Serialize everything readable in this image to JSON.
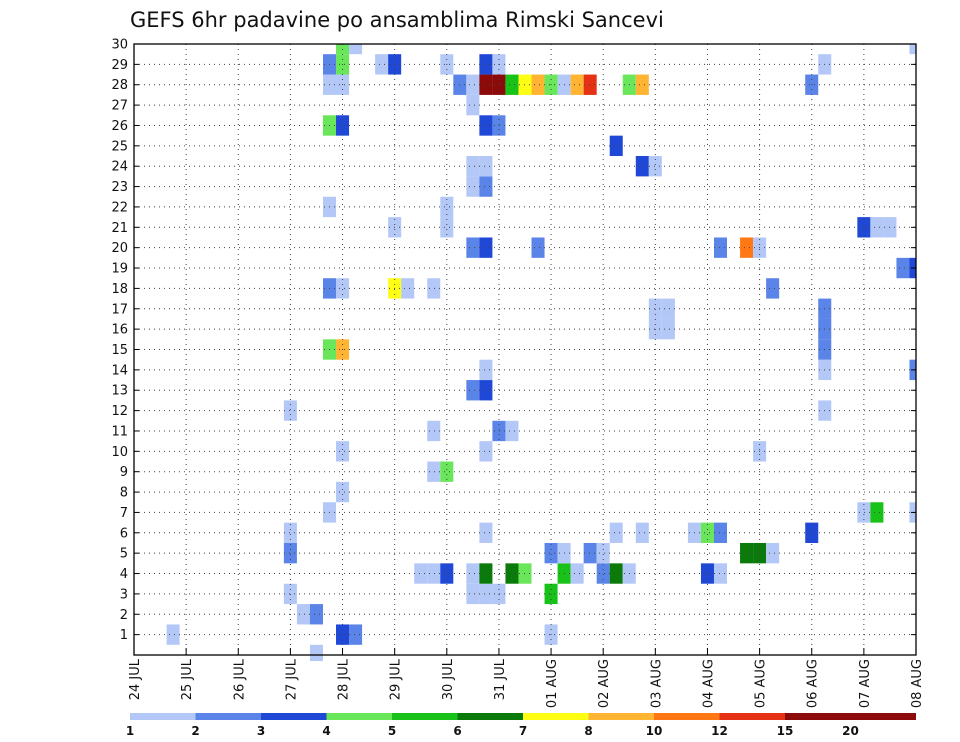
{
  "chart_data": {
    "type": "heatmap",
    "title": "GEFS 6hr padavine po ansamblima Rimski Sancevi",
    "xlabel": "",
    "ylabel": "",
    "x_tick_labels": [
      "24 JUL",
      "25 JUL",
      "26 JUL",
      "27 JUL",
      "28 JUL",
      "29 JUL",
      "30 JUL",
      "31 JUL",
      "01 AUG",
      "02 AUG",
      "03 AUG",
      "04 AUG",
      "05 AUG",
      "06 AUG",
      "07 AUG",
      "08 AUG"
    ],
    "y_tick_labels": [
      "1",
      "2",
      "3",
      "4",
      "5",
      "6",
      "7",
      "8",
      "9",
      "10",
      "11",
      "12",
      "13",
      "14",
      "15",
      "16",
      "17",
      "18",
      "19",
      "20",
      "21",
      "22",
      "23",
      "24",
      "25",
      "26",
      "27",
      "28",
      "29",
      "30"
    ],
    "x_unit": "6-hour step from 24 JUL 00",
    "xlim": [
      0,
      60
    ],
    "ylim": [
      0,
      30
    ],
    "grid": true,
    "colorbar": {
      "labels": [
        "1",
        "2",
        "3",
        "4",
        "5",
        "6",
        "7",
        "8",
        "10",
        "12",
        "15",
        "20"
      ],
      "colors": [
        "#b4c8f8",
        "#5a84e8",
        "#1f48d6",
        "#6ae65a",
        "#19c219",
        "#0a7a0a",
        "#ffff14",
        "#ffb432",
        "#ff7814",
        "#e63214",
        "#8c0a0a"
      ]
    },
    "cells": [
      [
        3,
        1,
        0
      ],
      [
        16,
        1,
        2
      ],
      [
        17,
        1,
        1
      ],
      [
        32,
        1,
        0
      ],
      [
        13,
        2,
        0
      ],
      [
        14,
        2,
        1
      ],
      [
        12,
        3,
        0
      ],
      [
        26,
        3,
        0
      ],
      [
        27,
        3,
        0
      ],
      [
        28,
        3,
        0
      ],
      [
        32,
        3,
        4
      ],
      [
        22,
        4,
        0
      ],
      [
        23,
        4,
        0
      ],
      [
        24,
        4,
        2
      ],
      [
        26,
        4,
        0
      ],
      [
        27,
        4,
        5
      ],
      [
        29,
        4,
        5
      ],
      [
        30,
        4,
        3
      ],
      [
        33,
        4,
        4
      ],
      [
        34,
        4,
        0
      ],
      [
        36,
        4,
        1
      ],
      [
        37,
        4,
        5
      ],
      [
        38,
        4,
        0
      ],
      [
        44,
        4,
        2
      ],
      [
        45,
        4,
        0
      ],
      [
        12,
        5,
        1
      ],
      [
        32,
        5,
        1
      ],
      [
        33,
        5,
        0
      ],
      [
        35,
        5,
        1
      ],
      [
        36,
        5,
        0
      ],
      [
        47,
        5,
        5
      ],
      [
        48,
        5,
        5
      ],
      [
        49,
        5,
        0
      ],
      [
        12,
        6,
        0
      ],
      [
        27,
        6,
        0
      ],
      [
        37,
        6,
        0
      ],
      [
        39,
        6,
        0
      ],
      [
        43,
        6,
        0
      ],
      [
        44,
        6,
        3
      ],
      [
        45,
        6,
        1
      ],
      [
        52,
        6,
        2
      ],
      [
        15,
        7,
        0
      ],
      [
        56,
        7,
        0
      ],
      [
        57,
        7,
        4
      ],
      [
        60,
        7,
        0
      ],
      [
        16,
        8,
        0
      ],
      [
        23,
        9,
        0
      ],
      [
        24,
        9,
        3
      ],
      [
        16,
        10,
        0
      ],
      [
        27,
        10,
        0
      ],
      [
        48,
        10,
        0
      ],
      [
        23,
        11,
        0
      ],
      [
        28,
        11,
        1
      ],
      [
        29,
        11,
        0
      ],
      [
        12,
        12,
        0
      ],
      [
        53,
        12,
        0
      ],
      [
        26,
        13,
        1
      ],
      [
        27,
        13,
        2
      ],
      [
        27,
        14,
        0
      ],
      [
        53,
        14,
        0
      ],
      [
        60,
        14,
        1
      ],
      [
        15,
        15,
        3
      ],
      [
        16,
        15,
        7
      ],
      [
        53,
        15,
        1
      ],
      [
        40,
        16,
        0
      ],
      [
        41,
        16,
        0
      ],
      [
        53,
        16,
        1
      ],
      [
        40,
        17,
        0
      ],
      [
        41,
        17,
        0
      ],
      [
        53,
        17,
        1
      ],
      [
        15,
        18,
        1
      ],
      [
        16,
        18,
        0
      ],
      [
        20,
        18,
        6
      ],
      [
        21,
        18,
        0
      ],
      [
        23,
        18,
        0
      ],
      [
        49,
        18,
        1
      ],
      [
        59,
        19,
        1
      ],
      [
        60,
        19,
        2
      ],
      [
        26,
        20,
        1
      ],
      [
        27,
        20,
        2
      ],
      [
        31,
        20,
        1
      ],
      [
        45,
        20,
        1
      ],
      [
        47,
        20,
        8
      ],
      [
        48,
        20,
        0
      ],
      [
        20,
        21,
        0
      ],
      [
        24,
        21,
        0
      ],
      [
        56,
        21,
        2
      ],
      [
        57,
        21,
        0
      ],
      [
        58,
        21,
        0
      ],
      [
        15,
        22,
        0
      ],
      [
        24,
        22,
        0
      ],
      [
        26,
        23,
        0
      ],
      [
        27,
        23,
        1
      ],
      [
        26,
        24,
        0
      ],
      [
        27,
        24,
        0
      ],
      [
        39,
        24,
        2
      ],
      [
        40,
        24,
        0
      ],
      [
        37,
        25,
        2
      ],
      [
        15,
        26,
        3
      ],
      [
        16,
        26,
        2
      ],
      [
        27,
        26,
        2
      ],
      [
        28,
        26,
        1
      ],
      [
        26,
        27,
        0
      ],
      [
        15,
        28,
        0
      ],
      [
        16,
        28,
        0
      ],
      [
        25,
        28,
        1
      ],
      [
        26,
        28,
        0
      ],
      [
        27,
        28,
        10
      ],
      [
        28,
        28,
        10
      ],
      [
        29,
        28,
        4
      ],
      [
        30,
        28,
        6
      ],
      [
        31,
        28,
        7
      ],
      [
        32,
        28,
        3
      ],
      [
        33,
        28,
        0
      ],
      [
        34,
        28,
        7
      ],
      [
        35,
        28,
        9
      ],
      [
        38,
        28,
        3
      ],
      [
        39,
        28,
        7
      ],
      [
        52,
        28,
        1
      ],
      [
        15,
        29,
        1
      ],
      [
        16,
        29,
        3
      ],
      [
        19,
        29,
        0
      ],
      [
        20,
        29,
        2
      ],
      [
        24,
        29,
        0
      ],
      [
        27,
        29,
        2
      ],
      [
        28,
        29,
        0
      ],
      [
        53,
        29,
        0
      ],
      [
        16,
        30,
        3
      ],
      [
        17,
        30,
        0
      ],
      [
        60,
        30,
        0
      ],
      [
        14,
        0,
        0
      ]
    ]
  }
}
